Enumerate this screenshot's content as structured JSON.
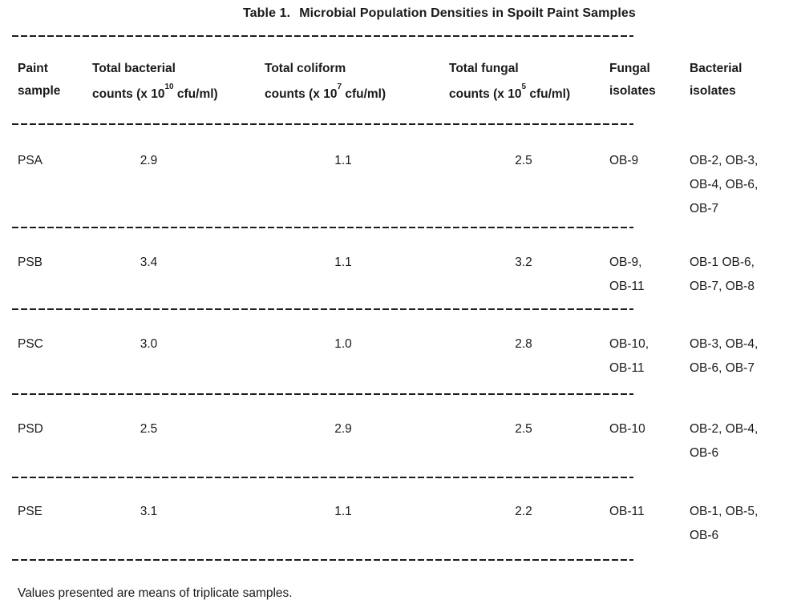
{
  "title": {
    "label": "Table 1.",
    "text": "Microbial Population Densities in Spoilt Paint Samples"
  },
  "table": {
    "headers": [
      {
        "line1": "Paint",
        "line2": "sample"
      },
      {
        "line1": "Total bacterial",
        "line2_prefix": "counts (x 10",
        "exponent": "10",
        "line2_suffix": " cfu/ml)"
      },
      {
        "line1": "Total coliform",
        "line2_prefix": "counts (x 10",
        "exponent": "7",
        "line2_suffix": " cfu/ml)"
      },
      {
        "line1": "Total fungal",
        "line2_prefix": "counts (x 10",
        "exponent": "5",
        "line2_suffix": " cfu/ml)"
      },
      {
        "line1": "Fungal",
        "line2": "isolates"
      },
      {
        "line1": "Bacterial",
        "line2": "isolates"
      }
    ],
    "rows": [
      {
        "sample": "PSA",
        "bacterial_count": "2.9",
        "coliform_count": "1.1",
        "fungal_count": "2.5",
        "fungal_isolates": [
          "OB-9"
        ],
        "bacterial_isolates": [
          "OB-2, OB-3,",
          "OB-4, OB-6,",
          "OB-7"
        ]
      },
      {
        "sample": "PSB",
        "bacterial_count": "3.4",
        "coliform_count": "1.1",
        "fungal_count": "3.2",
        "fungal_isolates": [
          "OB-9,",
          "OB-11"
        ],
        "bacterial_isolates": [
          "OB-1 OB-6,",
          "OB-7, OB-8"
        ]
      },
      {
        "sample": "PSC",
        "bacterial_count": "3.0",
        "coliform_count": "1.0",
        "fungal_count": "2.8",
        "fungal_isolates": [
          "OB-10,",
          "OB-11"
        ],
        "bacterial_isolates": [
          "OB-3, OB-4,",
          "OB-6, OB-7"
        ]
      },
      {
        "sample": "PSD",
        "bacterial_count": "2.5",
        "coliform_count": "2.9",
        "fungal_count": "2.5",
        "fungal_isolates": [
          "OB-10"
        ],
        "bacterial_isolates": [
          "OB-2, OB-4,",
          "OB-6"
        ]
      },
      {
        "sample": "PSE",
        "bacterial_count": "3.1",
        "coliform_count": "1.1",
        "fungal_count": "2.2",
        "fungal_isolates": [
          "OB-11"
        ],
        "bacterial_isolates": [
          "OB-1, OB-5,",
          "OB-6"
        ]
      }
    ]
  },
  "footnote": "Values presented are means of triplicate samples.",
  "colors": {
    "text": "#1a1a1a",
    "background": "#ffffff"
  }
}
